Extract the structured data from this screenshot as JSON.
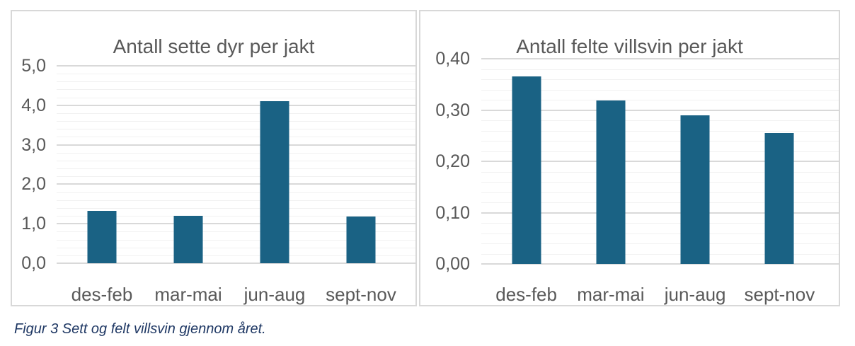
{
  "caption": {
    "text": "Figur 3 Sett og felt villsvin gjennom året."
  },
  "colors": {
    "bar": "#1A6284",
    "chart_title_text": "#595959",
    "axis_text": "#595959",
    "major_gridline": "#D9D9D9",
    "minor_gridline": "#F1F1F1",
    "panel_border": "#D8D8D8",
    "caption_text": "#1F3864",
    "background": "#FFFFFF"
  },
  "chart_data": [
    {
      "type": "bar",
      "title": "Antall sette dyr per jakt",
      "categories": [
        "des-feb",
        "mar-mai",
        "jun-aug",
        "sept-nov"
      ],
      "values": [
        1.32,
        1.2,
        4.1,
        1.18
      ],
      "ylim": [
        0,
        5.0
      ],
      "y_major_step": 1.0,
      "y_minor_step": 0.2,
      "y_tick_labels": [
        "0,0",
        "1,0",
        "2,0",
        "3,0",
        "4,0",
        "5,0"
      ],
      "grid": true,
      "legend": "none",
      "bar_color": "#1A6284"
    },
    {
      "type": "bar",
      "title": "Antall felte villsvin per jakt",
      "categories": [
        "des-feb",
        "mar-mai",
        "jun-aug",
        "sept-nov"
      ],
      "values": [
        0.365,
        0.318,
        0.29,
        0.255
      ],
      "ylim": [
        0,
        0.4
      ],
      "y_major_step": 0.1,
      "y_minor_step": 0.02,
      "y_tick_labels": [
        "0,00",
        "0,10",
        "0,20",
        "0,30",
        "0,40"
      ],
      "grid": true,
      "legend": "none",
      "bar_color": "#1A6284"
    }
  ]
}
